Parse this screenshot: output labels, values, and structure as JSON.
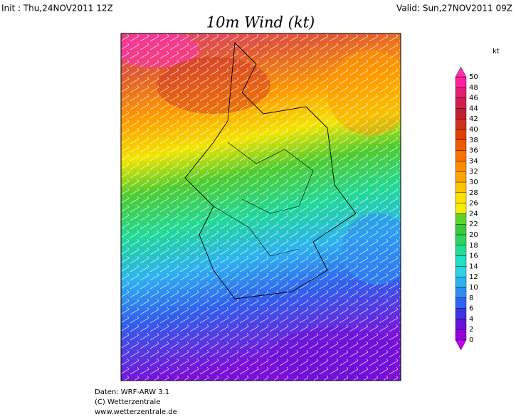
{
  "header": {
    "init": "Init : Thu,24NOV2011 12Z",
    "valid": "Valid: Sun,27NOV2011 09Z",
    "title": "10m Wind (kt)"
  },
  "colorbar": {
    "unit": "kt",
    "labels": [
      0,
      2,
      4,
      6,
      8,
      10,
      12,
      14,
      16,
      18,
      20,
      22,
      24,
      26,
      28,
      30,
      32,
      34,
      36,
      38,
      40,
      42,
      44,
      46,
      48,
      50
    ],
    "colors": [
      "#9a00d8",
      "#6a10d8",
      "#3c34e4",
      "#2e62f0",
      "#2e8ef2",
      "#2cb2f0",
      "#2ed2e2",
      "#1ee2c2",
      "#1ee092",
      "#2ed462",
      "#3cc83c",
      "#60d22c",
      "#f2f000",
      "#ffe000",
      "#ffc400",
      "#ffa400",
      "#ff8c00",
      "#ff7200",
      "#f05a00",
      "#e04000",
      "#d03020",
      "#c02030",
      "#d02050",
      "#e02070",
      "#ff20a0"
    ],
    "low_color": "#c000f0",
    "high_color": "#ff30b0"
  },
  "footer": {
    "lines": [
      "Daten: WRF-ARW 3.1",
      "(C) Wetterzentrale",
      "www.wetterzentrale.de"
    ]
  }
}
